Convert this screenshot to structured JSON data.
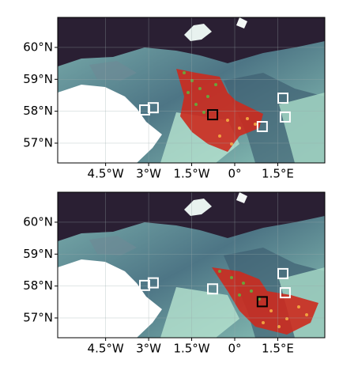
{
  "chart_data": [
    {
      "type": "map",
      "xlim": [
        -6.17,
        3.14
      ],
      "ylim": [
        56.38,
        60.94
      ],
      "xticks": [
        {
          "value": -4.5,
          "label": "4.5°W"
        },
        {
          "value": -3,
          "label": "3°W"
        },
        {
          "value": -1.5,
          "label": "1.5°W"
        },
        {
          "value": 0,
          "label": "0°"
        },
        {
          "value": 1.5,
          "label": "1.5°E"
        }
      ],
      "yticks": [
        {
          "value": 57,
          "label": "57°N"
        },
        {
          "value": 58,
          "label": "58°N"
        },
        {
          "value": 59,
          "label": "59°N"
        },
        {
          "value": 60,
          "label": "60°N"
        }
      ],
      "series": [
        {
          "color": "#ffffff",
          "x": [
            -3.14,
            -2.84,
            0.96,
            1.68,
            1.76
          ],
          "y": [
            58.04,
            58.11,
            57.52,
            58.41,
            57.82
          ]
        },
        {
          "color": "#000000",
          "x": [
            -0.77
          ],
          "y": [
            57.89
          ]
        }
      ]
    },
    {
      "type": "map",
      "xlim": [
        -6.17,
        3.14
      ],
      "ylim": [
        56.38,
        60.94
      ],
      "xticks": [
        {
          "value": -4.5,
          "label": "4.5°W"
        },
        {
          "value": -3,
          "label": "3°W"
        },
        {
          "value": -1.5,
          "label": "1.5°W"
        },
        {
          "value": 0,
          "label": "0°"
        },
        {
          "value": 1.5,
          "label": "1.5°E"
        }
      ],
      "yticks": [
        {
          "value": 57,
          "label": "57°N"
        },
        {
          "value": 58,
          "label": "58°N"
        },
        {
          "value": 59,
          "label": "59°N"
        },
        {
          "value": 60,
          "label": "60°N"
        }
      ],
      "series": [
        {
          "color": "#ffffff",
          "x": [
            -3.14,
            -2.84,
            -0.77,
            1.68,
            1.76
          ],
          "y": [
            58.02,
            58.1,
            57.91,
            58.39,
            57.79
          ]
        },
        {
          "color": "#000000",
          "x": [
            0.96
          ],
          "y": [
            57.51
          ]
        }
      ]
    }
  ]
}
